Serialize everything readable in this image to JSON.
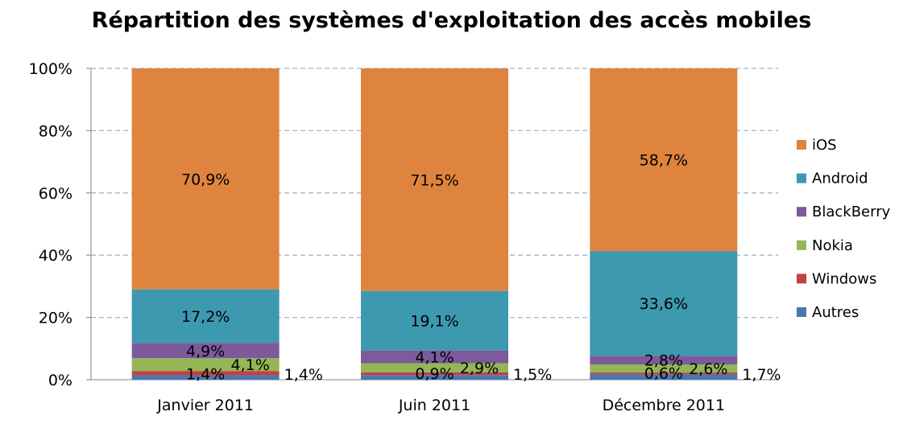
{
  "chart_data": {
    "type": "bar",
    "stacked": true,
    "title": "Répartition des systèmes d'exploitation des accès mobiles",
    "categories": [
      "Janvier 2011",
      "Juin 2011",
      "Décembre 2011"
    ],
    "series": [
      {
        "name": "Autres",
        "color": "#4a76b2",
        "values": [
          1.4,
          1.5,
          1.7
        ],
        "labels": [
          "1,4%",
          "1,5%",
          "1,7%"
        ]
      },
      {
        "name": "Windows",
        "color": "#bf4342",
        "values": [
          1.4,
          0.9,
          0.6
        ],
        "labels": [
          "1,4%",
          "0,9%",
          "0,6%"
        ]
      },
      {
        "name": "Nokia",
        "color": "#94b656",
        "values": [
          4.1,
          2.9,
          2.6
        ],
        "labels": [
          "4,1%",
          "2,9%",
          "2,6%"
        ]
      },
      {
        "name": "BlackBerry",
        "color": "#7c5a9c",
        "values": [
          4.9,
          4.1,
          2.8
        ],
        "labels": [
          "4,9%",
          "4,1%",
          "2,8%"
        ]
      },
      {
        "name": "Android",
        "color": "#3c99b0",
        "values": [
          17.2,
          19.1,
          33.6
        ],
        "labels": [
          "17,2%",
          "19,1%",
          "33,6%"
        ]
      },
      {
        "name": "iOS",
        "color": "#df843e",
        "values": [
          70.9,
          71.5,
          58.7
        ],
        "labels": [
          "70,9%",
          "71,5%",
          "58,7%"
        ]
      }
    ],
    "yticks": [
      "0%",
      "20%",
      "40%",
      "60%",
      "80%",
      "100%"
    ],
    "ylim": [
      0,
      100
    ],
    "xlabel": "",
    "ylabel": "",
    "grid": true,
    "legend": "right"
  }
}
